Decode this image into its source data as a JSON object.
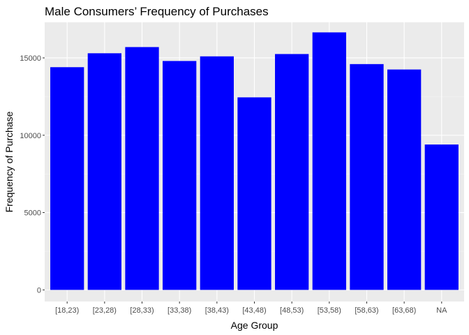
{
  "chart_data": {
    "type": "bar",
    "title": "Male Consumers’ Frequency of Purchases",
    "xlabel": "Age Group",
    "ylabel": "Frequency of Purchase",
    "categories": [
      "[18,23)",
      "[23,28)",
      "[28,33)",
      "[33,38)",
      "[38,43)",
      "[43,48)",
      "[48,53)",
      "[53,58)",
      "[58,63)",
      "[63,68)",
      "NA"
    ],
    "values": [
      14400,
      15300,
      15700,
      14800,
      15100,
      12450,
      15250,
      16650,
      14600,
      14250,
      9400
    ],
    "ylim": [
      -750,
      17300
    ],
    "yticks": [
      0,
      5000,
      10000,
      15000
    ],
    "ytick_labels": [
      "0",
      "5000",
      "10000",
      "15000"
    ],
    "grid": true,
    "colors": {
      "bar": "#0000FF",
      "panel": "#EBEBEB",
      "grid_major": "#FFFFFF",
      "grid_minor": "#F5F5F5"
    }
  }
}
